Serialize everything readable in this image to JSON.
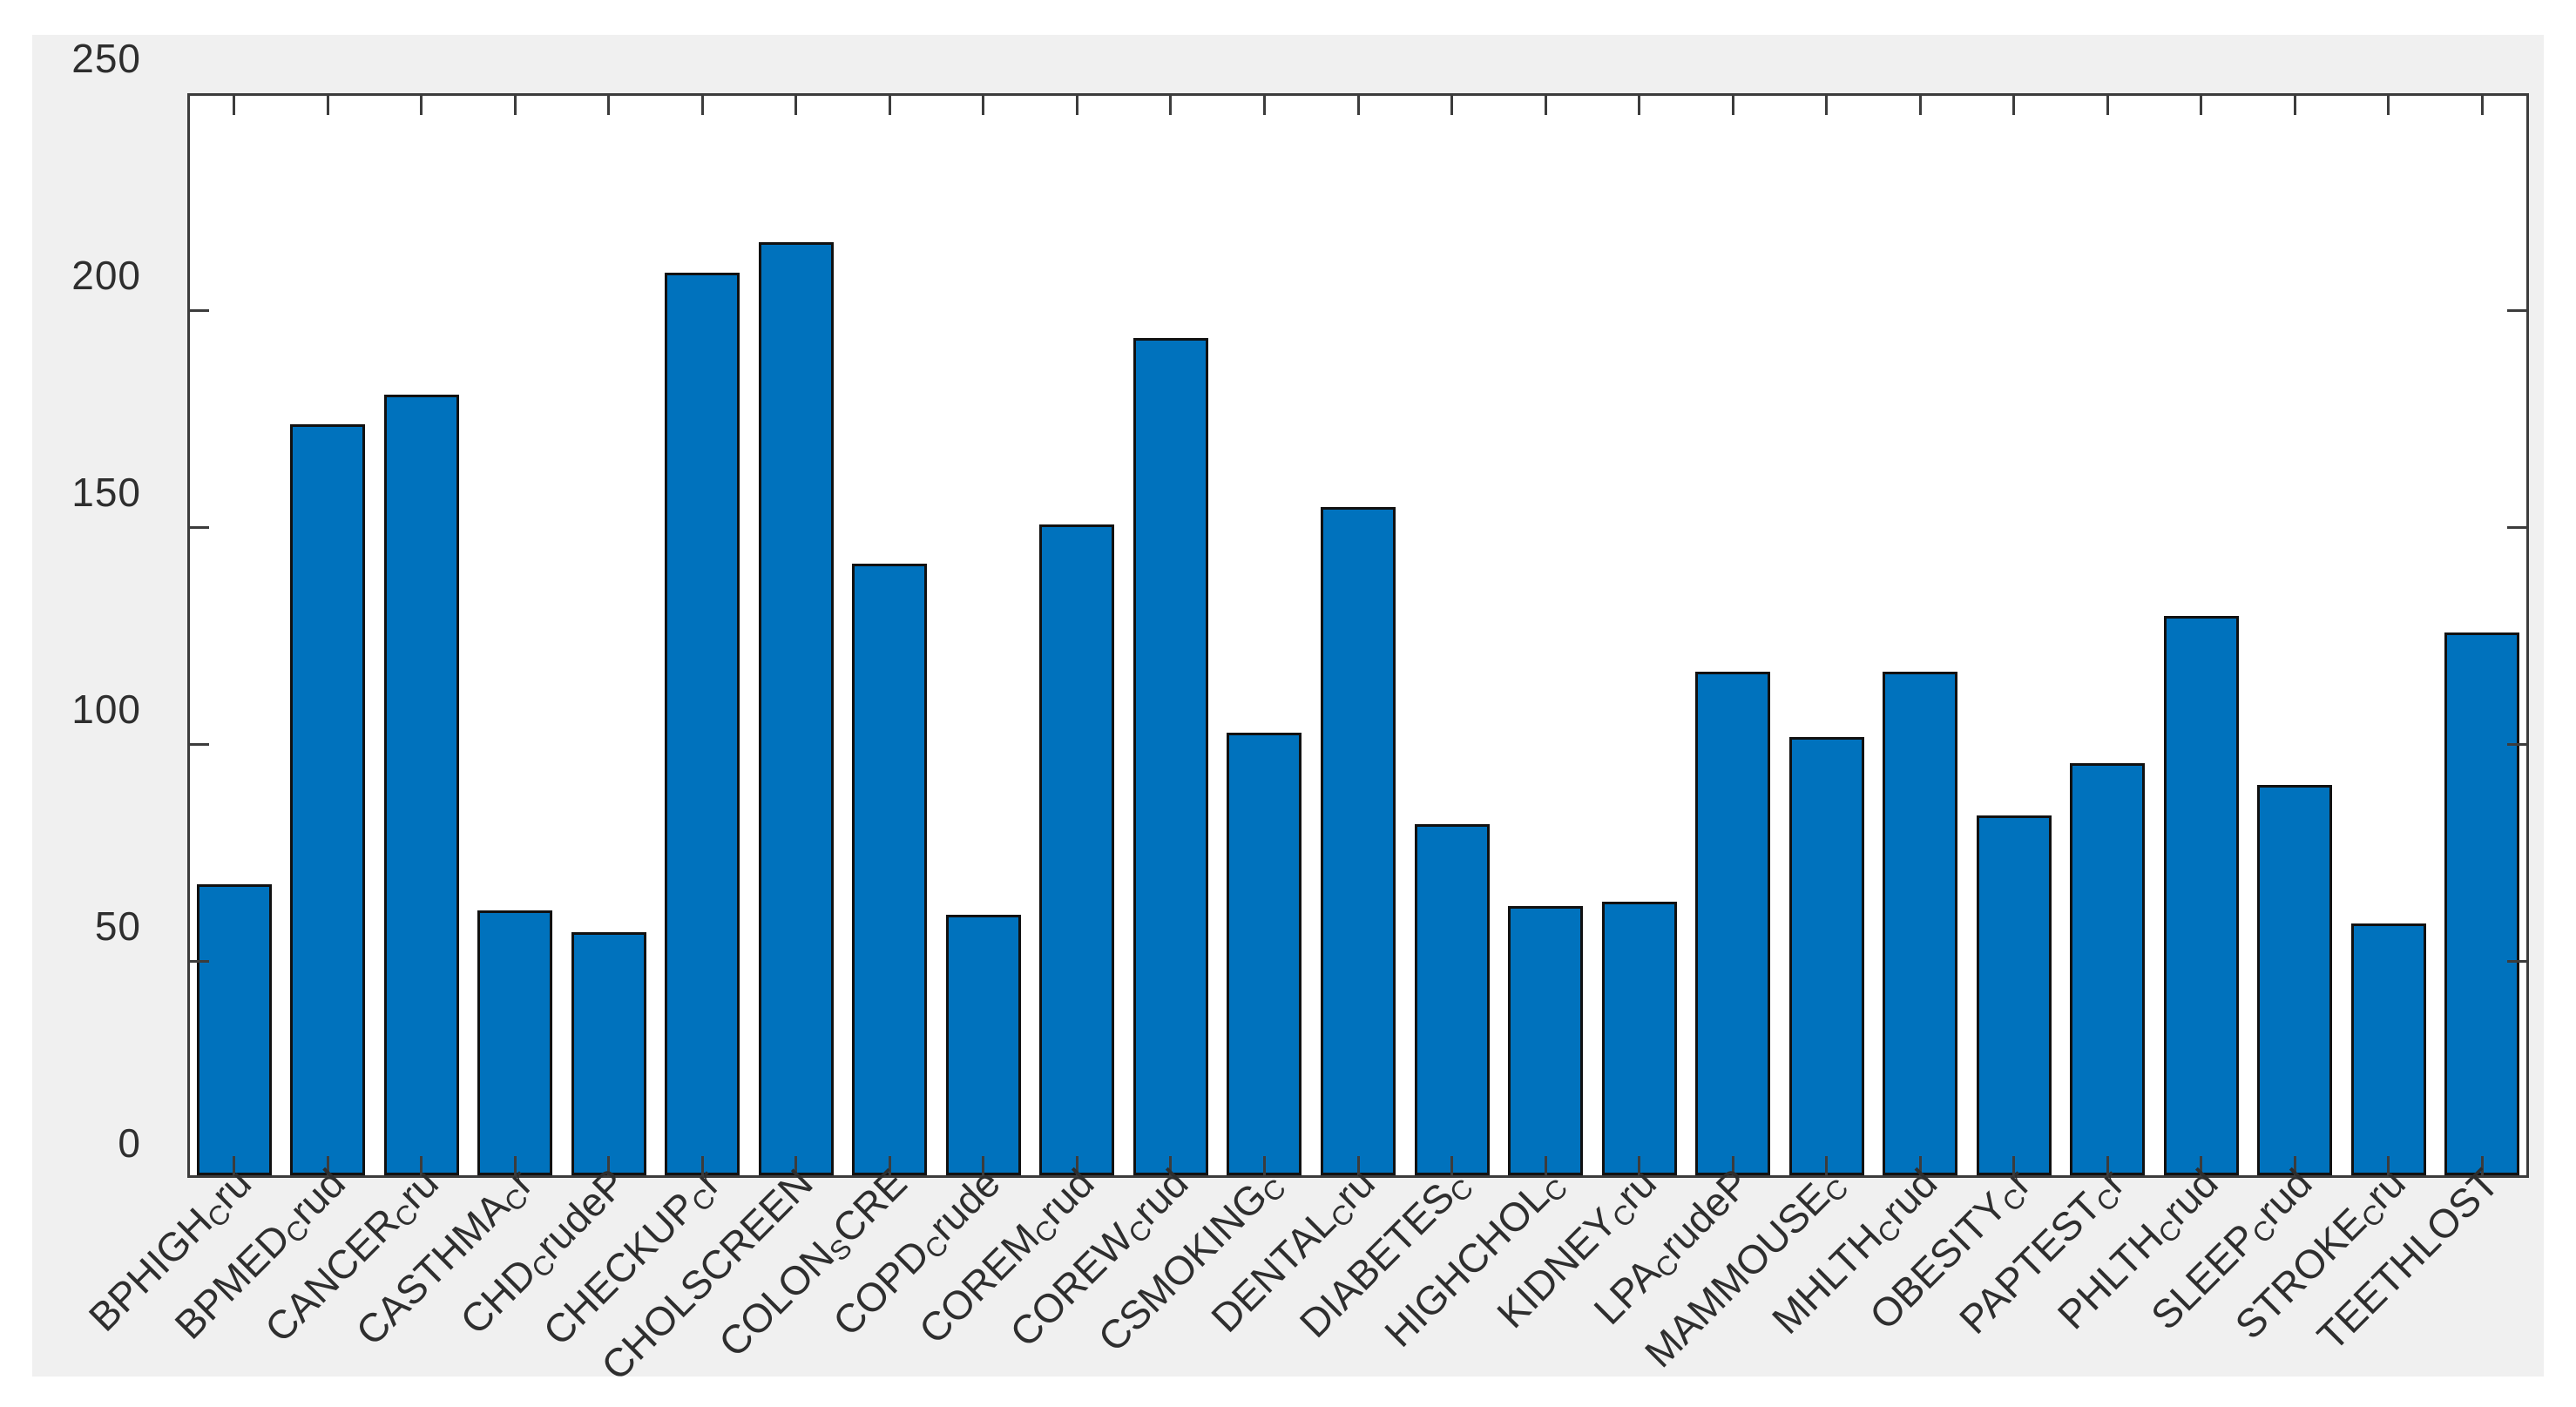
{
  "window": {
    "background": "#ffffff"
  },
  "figure": {
    "background": "#f0f0f0"
  },
  "chart_data": {
    "type": "bar",
    "title": "",
    "xlabel": "",
    "ylabel": "",
    "categories": [
      "BPHIGH_Cru",
      "BPMED_Crud",
      "CANCER_Cru",
      "CASTHMA_Cr",
      "CHD_CrudeP",
      "CHECKUP_Cr",
      "CHOLSCREEN",
      "COLON_SCRE",
      "COPD_Crude",
      "COREM_Crud",
      "COREW_Crud",
      "CSMOKING_C",
      "DENTAL_Cru",
      "DIABETES_C",
      "HIGHCHOL_C",
      "KIDNEY_Cru",
      "LPA_CrudeP",
      "MAMMOUSE_C",
      "MHLTH_Crud",
      "OBESITY_Cr",
      "PAPTEST_Cr",
      "PHLTH_Crud",
      "SLEEP_Crud",
      "STROKE_Cru",
      "TEETHLOST"
    ],
    "values": [
      67,
      173,
      180,
      61,
      56,
      208,
      215,
      141,
      60,
      150,
      193,
      102,
      154,
      81,
      62,
      63,
      116,
      101,
      116,
      83,
      95,
      129,
      90,
      58,
      125
    ],
    "ylim": [
      0,
      250
    ],
    "yticks": [
      0,
      50,
      100,
      150,
      200,
      250
    ],
    "xtick_rotation_deg": 45,
    "grid": false,
    "box": true,
    "tick_direction": "in",
    "legend": "none",
    "plot_background": "#ffffff",
    "bar_color": "#0072BD",
    "bar_edge_color": "#111111",
    "axis_color": "#3c3c3c",
    "tick_label_color": "#2e2e2e"
  }
}
